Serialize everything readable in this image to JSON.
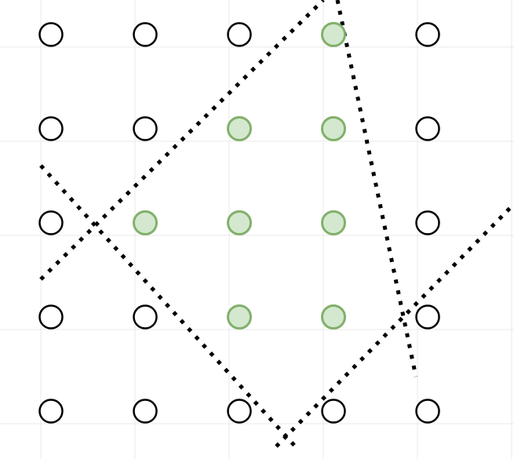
{
  "grid": {
    "rows": 5,
    "cols": 5,
    "highlighted": [
      [
        0,
        3
      ],
      [
        1,
        2
      ],
      [
        1,
        3
      ],
      [
        2,
        1
      ],
      [
        2,
        2
      ],
      [
        2,
        3
      ],
      [
        3,
        2
      ],
      [
        3,
        3
      ]
    ]
  },
  "colors": {
    "background": "#ffffff",
    "grid_line": "#e8e8e8",
    "circle_stroke": "#000000",
    "circle_fill": "#ffffff",
    "highlight_fill": "#d4e8cf",
    "highlight_stroke": "#82b06b",
    "dotted_line": "#000000"
  },
  "dotted_lines": {
    "count": 4,
    "style": "dotted"
  }
}
